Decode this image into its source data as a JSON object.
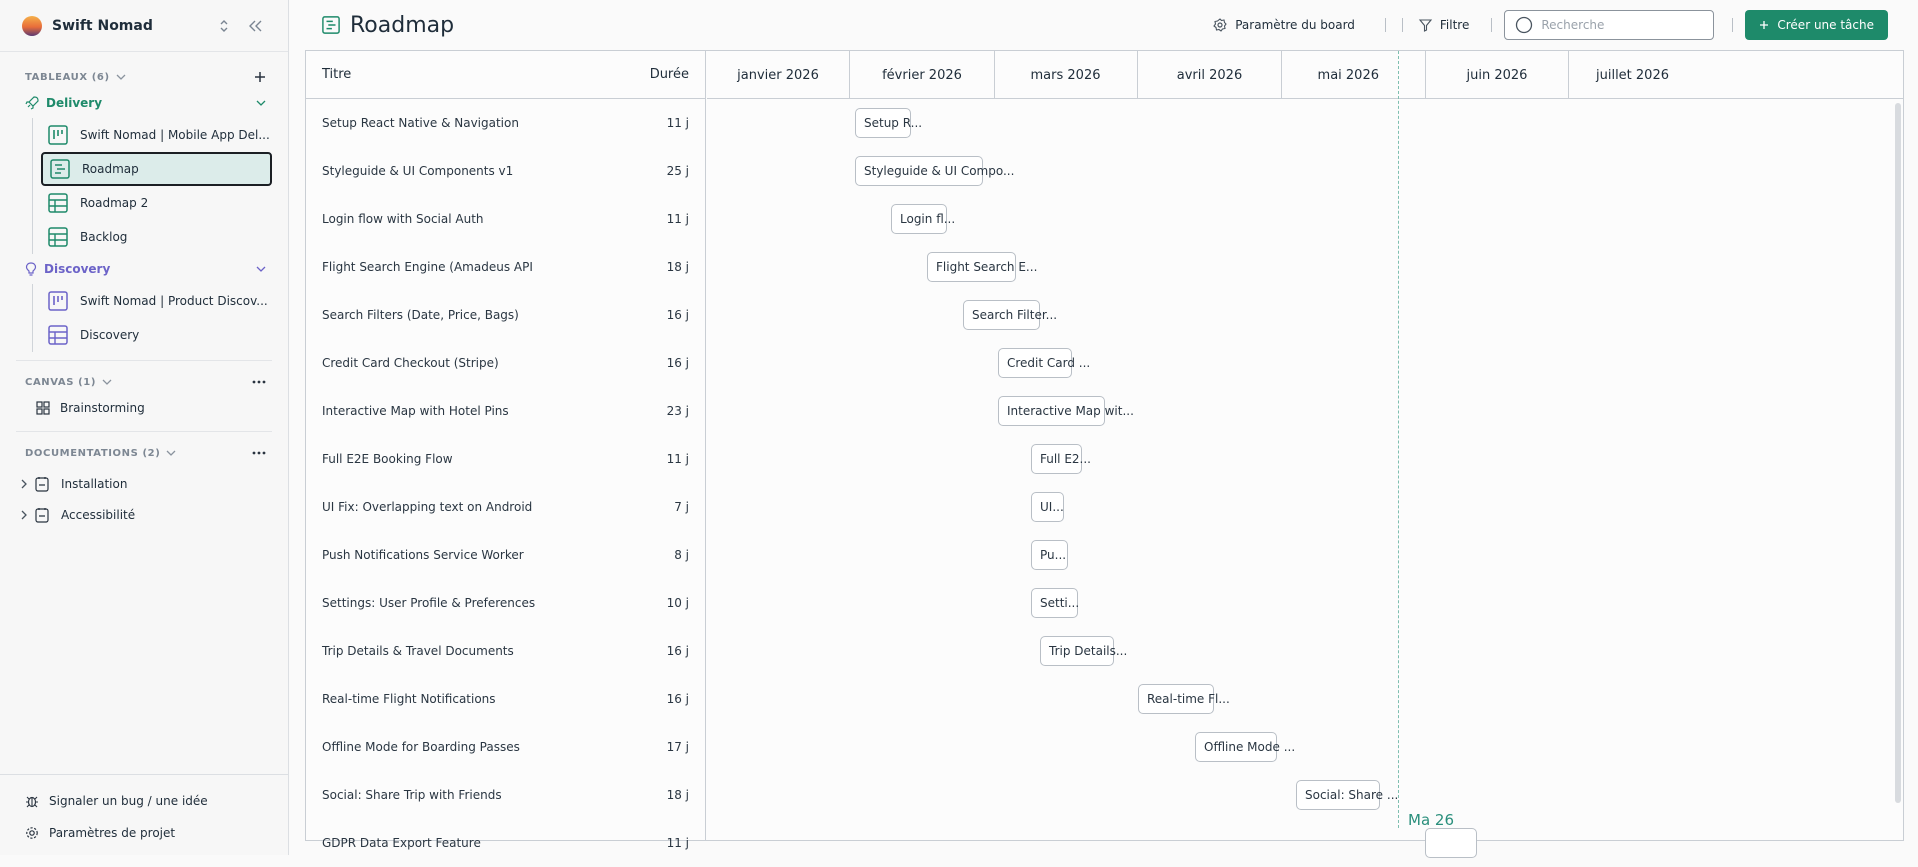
{
  "workspace": {
    "name": "Swift Nomad"
  },
  "sidebar": {
    "tableaux": {
      "title": "TABLEAUX (6)"
    },
    "delivery": {
      "label": "Delivery",
      "items": [
        {
          "label": "Swift Nomad | Mobile App Del...",
          "icon": "kanban-icon"
        },
        {
          "label": "Roadmap",
          "icon": "roadmap-icon"
        },
        {
          "label": "Roadmap 2",
          "icon": "table-icon"
        },
        {
          "label": "Backlog",
          "icon": "table-icon"
        }
      ]
    },
    "discovery": {
      "label": "Discovery",
      "items": [
        {
          "label": "Swift Nomad | Product Discov...",
          "icon": "kanban-icon"
        },
        {
          "label": "Discovery",
          "icon": "table-icon"
        }
      ]
    },
    "canvas": {
      "title": "CANVAS (1)",
      "items": [
        {
          "label": "Brainstorming"
        }
      ]
    },
    "docs": {
      "title": "DOCUMENTATIONS (2)",
      "items": [
        {
          "label": "Installation"
        },
        {
          "label": "Accessibilité"
        }
      ]
    },
    "footer": {
      "bug_label": "Signaler un bug / une idée",
      "settings_label": "Paramètres de projet"
    }
  },
  "header": {
    "title": "Roadmap",
    "board_settings": "Paramètre du board",
    "filter": "Filtre",
    "search_placeholder": "Recherche",
    "create_task": "Créer une tâche"
  },
  "colors": {
    "accent": "#1e8a6a",
    "discovery": "#6c63c8"
  },
  "gantt": {
    "col_title": "Titre",
    "col_duration": "Durée",
    "months": [
      "janvier 2026",
      "février 2026",
      "mars 2026",
      "avril 2026",
      "mai 2026",
      "juin 2026",
      "juillet 2026"
    ],
    "today_label": "Ma  26",
    "rows": [
      {
        "title": "Setup React Native & Navigation",
        "duration": "11 j",
        "bar": "Setup R..."
      },
      {
        "title": "Styleguide & UI Components v1",
        "duration": "25 j",
        "bar": "Styleguide & UI Compo..."
      },
      {
        "title": "Login flow with Social Auth",
        "duration": "11 j",
        "bar": "Login fl..."
      },
      {
        "title": "Flight Search Engine (Amadeus API",
        "duration": "18 j",
        "bar": "Flight Search E..."
      },
      {
        "title": "Search Filters (Date, Price, Bags)",
        "duration": "16 j",
        "bar": "Search Filter..."
      },
      {
        "title": "Credit Card Checkout (Stripe)",
        "duration": "16 j",
        "bar": "Credit Card ..."
      },
      {
        "title": "Interactive Map with Hotel Pins",
        "duration": "23 j",
        "bar": "Interactive Map wit..."
      },
      {
        "title": "Full E2E Booking Flow",
        "duration": "11 j",
        "bar": "Full E2..."
      },
      {
        "title": "UI Fix: Overlapping text on Android",
        "duration": "7 j",
        "bar": "UI..."
      },
      {
        "title": "Push Notifications Service Worker",
        "duration": "8 j",
        "bar": "Pu..."
      },
      {
        "title": "Settings: User Profile & Preferences",
        "duration": "10 j",
        "bar": "Setti..."
      },
      {
        "title": "Trip Details & Travel Documents",
        "duration": "16 j",
        "bar": "Trip Details..."
      },
      {
        "title": "Real-time Flight Notifications",
        "duration": "16 j",
        "bar": "Real-time Fl..."
      },
      {
        "title": "Offline Mode for Boarding Passes",
        "duration": "17 j",
        "bar": "Offline Mode ..."
      },
      {
        "title": "Social: Share Trip with Friends",
        "duration": "18 j",
        "bar": "Social: Share ..."
      },
      {
        "title": "GDPR Data Export Feature",
        "duration": "11 j",
        "bar": ""
      }
    ]
  }
}
